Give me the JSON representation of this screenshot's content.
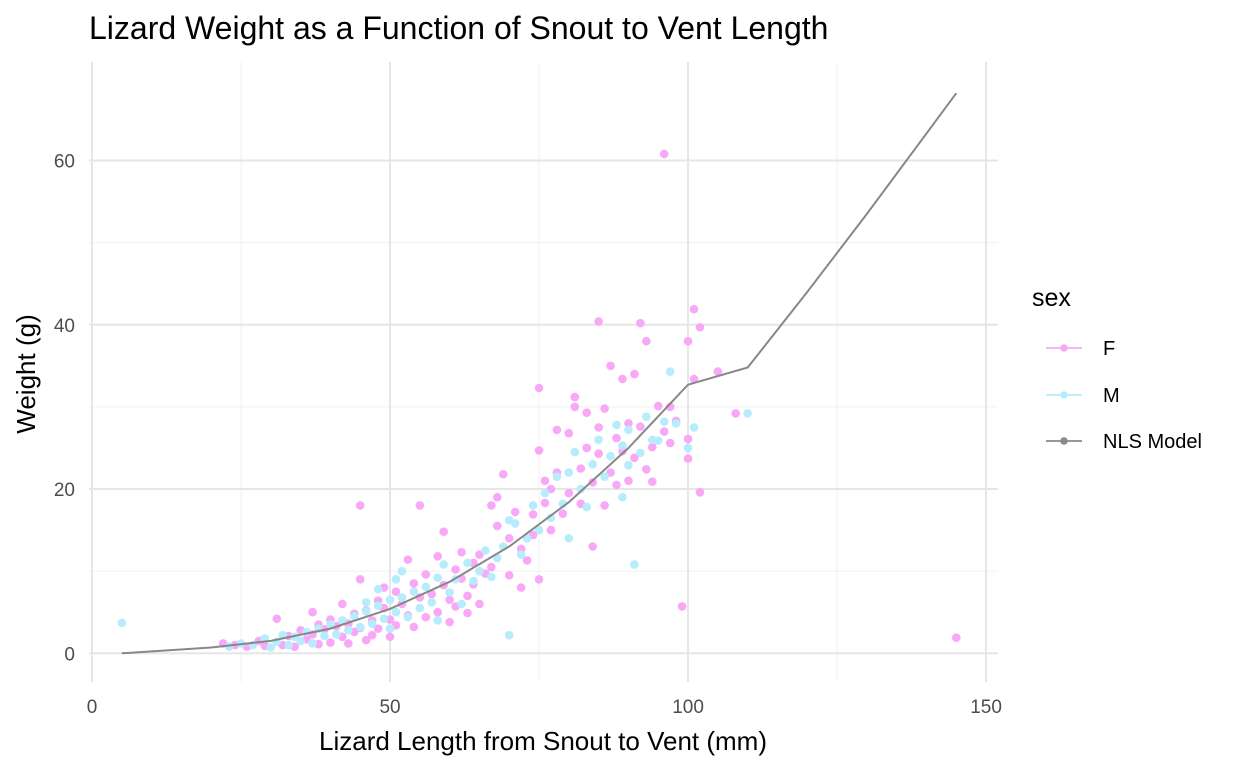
{
  "chart_data": {
    "type": "scatter",
    "title": "Lizard Weight as a Function of Snout to Vent Length",
    "xlabel": "Lizard Length from Snout to Vent (mm)",
    "ylabel": "Weight (g)",
    "xlim": [
      -0.5,
      152
    ],
    "ylim": [
      -3.5,
      72
    ],
    "x_ticks": [
      0,
      50,
      100,
      150
    ],
    "x_tick_labels": [
      "0",
      "50",
      "100",
      "150"
    ],
    "y_ticks": [
      0,
      20,
      40,
      60
    ],
    "y_tick_labels": [
      "0",
      "20",
      "40",
      "60"
    ],
    "x_minor_grid": [
      25,
      75,
      125
    ],
    "y_minor_grid": [
      10,
      30,
      50
    ],
    "grid": true,
    "legend": {
      "title": "sex",
      "position": "right",
      "entries": [
        {
          "label": "F",
          "color": "#f9a8f7"
        },
        {
          "label": "M",
          "color": "#b7ecfc"
        },
        {
          "label": "NLS Model",
          "color": "#888888"
        }
      ]
    },
    "series": [
      {
        "name": "F",
        "color": "#f9a8f7",
        "points": [
          [
            22,
            1.2
          ],
          [
            24,
            1.0
          ],
          [
            26,
            0.8
          ],
          [
            28,
            1.5
          ],
          [
            29,
            0.9
          ],
          [
            31,
            4.2
          ],
          [
            32,
            1.0
          ],
          [
            33,
            2.1
          ],
          [
            34,
            0.8
          ],
          [
            35,
            2.8
          ],
          [
            36,
            1.7
          ],
          [
            37,
            5.0
          ],
          [
            37,
            2.3
          ],
          [
            38,
            3.5
          ],
          [
            38,
            1.1
          ],
          [
            39,
            2.9
          ],
          [
            40,
            4.1
          ],
          [
            40,
            1.3
          ],
          [
            41,
            3.3
          ],
          [
            42,
            6.0
          ],
          [
            42,
            2.0
          ],
          [
            43,
            3.6
          ],
          [
            43,
            1.2
          ],
          [
            44,
            4.8
          ],
          [
            44,
            2.6
          ],
          [
            45,
            9.0
          ],
          [
            45,
            18.0
          ],
          [
            45,
            3.1
          ],
          [
            46,
            5.2
          ],
          [
            46,
            1.6
          ],
          [
            47,
            4.0
          ],
          [
            47,
            2.2
          ],
          [
            48,
            6.4
          ],
          [
            48,
            3.0
          ],
          [
            49,
            5.5
          ],
          [
            49,
            8.0
          ],
          [
            50,
            4.1
          ],
          [
            50,
            2.0
          ],
          [
            51,
            7.5
          ],
          [
            51,
            3.4
          ],
          [
            52,
            6.0
          ],
          [
            53,
            11.4
          ],
          [
            53,
            4.6
          ],
          [
            54,
            8.5
          ],
          [
            54,
            3.2
          ],
          [
            55,
            18.0
          ],
          [
            55,
            6.8
          ],
          [
            56,
            9.6
          ],
          [
            56,
            4.4
          ],
          [
            57,
            7.2
          ],
          [
            58,
            11.8
          ],
          [
            58,
            5.0
          ],
          [
            59,
            14.8
          ],
          [
            59,
            8.3
          ],
          [
            60,
            6.5
          ],
          [
            60,
            3.8
          ],
          [
            61,
            10.2
          ],
          [
            61,
            5.7
          ],
          [
            62,
            9.1
          ],
          [
            62,
            12.3
          ],
          [
            63,
            7.0
          ],
          [
            63,
            4.9
          ],
          [
            64,
            11.0
          ],
          [
            64,
            8.4
          ],
          [
            65,
            12.0
          ],
          [
            65,
            6.0
          ],
          [
            66,
            9.7
          ],
          [
            67,
            18.0
          ],
          [
            67,
            10.5
          ],
          [
            68,
            15.5
          ],
          [
            68,
            19.0
          ],
          [
            69,
            21.8
          ],
          [
            70,
            14.0
          ],
          [
            70,
            9.5
          ],
          [
            71,
            17.2
          ],
          [
            72,
            12.7
          ],
          [
            72,
            8.0
          ],
          [
            73,
            11.3
          ],
          [
            74,
            16.9
          ],
          [
            74,
            14.4
          ],
          [
            75,
            24.7
          ],
          [
            75,
            32.3
          ],
          [
            75,
            9.0
          ],
          [
            76,
            21.0
          ],
          [
            76,
            18.3
          ],
          [
            77,
            20.0
          ],
          [
            77,
            15.0
          ],
          [
            78,
            27.2
          ],
          [
            78,
            22.0
          ],
          [
            79,
            17.0
          ],
          [
            80,
            19.5
          ],
          [
            80,
            26.8
          ],
          [
            81,
            31.2
          ],
          [
            81,
            30.0
          ],
          [
            82,
            22.5
          ],
          [
            82,
            18.2
          ],
          [
            83,
            25.0
          ],
          [
            83,
            29.3
          ],
          [
            84,
            20.8
          ],
          [
            84,
            13.0
          ],
          [
            85,
            24.3
          ],
          [
            85,
            40.4
          ],
          [
            85,
            27.5
          ],
          [
            86,
            29.8
          ],
          [
            86,
            18.0
          ],
          [
            87,
            35.0
          ],
          [
            87,
            22.0
          ],
          [
            88,
            26.2
          ],
          [
            88,
            20.5
          ],
          [
            89,
            33.4
          ],
          [
            89,
            24.6
          ],
          [
            90,
            21.0
          ],
          [
            90,
            28.0
          ],
          [
            91,
            34.0
          ],
          [
            91,
            23.8
          ],
          [
            92,
            40.2
          ],
          [
            92,
            27.6
          ],
          [
            93,
            38.0
          ],
          [
            93,
            22.4
          ],
          [
            94,
            25.1
          ],
          [
            94,
            20.9
          ],
          [
            95,
            30.1
          ],
          [
            96,
            27.0
          ],
          [
            96,
            60.8
          ],
          [
            97,
            30.0
          ],
          [
            97,
            25.6
          ],
          [
            98,
            28.3
          ],
          [
            99,
            5.7
          ],
          [
            100,
            38.0
          ],
          [
            100,
            26.1
          ],
          [
            100,
            23.7
          ],
          [
            101,
            41.9
          ],
          [
            101,
            33.4
          ],
          [
            102,
            19.6
          ],
          [
            102,
            39.7
          ],
          [
            105,
            34.3
          ],
          [
            108,
            29.2
          ],
          [
            145,
            1.9
          ]
        ]
      },
      {
        "name": "M",
        "color": "#b7ecfc",
        "points": [
          [
            5,
            3.7
          ],
          [
            23,
            0.8
          ],
          [
            25,
            1.2
          ],
          [
            27,
            1.0
          ],
          [
            29,
            1.8
          ],
          [
            30,
            0.7
          ],
          [
            31,
            1.4
          ],
          [
            32,
            2.2
          ],
          [
            33,
            1.0
          ],
          [
            34,
            2.0
          ],
          [
            35,
            1.5
          ],
          [
            36,
            2.6
          ],
          [
            37,
            1.2
          ],
          [
            38,
            3.0
          ],
          [
            39,
            2.1
          ],
          [
            40,
            3.5
          ],
          [
            41,
            2.3
          ],
          [
            42,
            4.0
          ],
          [
            43,
            2.8
          ],
          [
            44,
            4.5
          ],
          [
            45,
            3.2
          ],
          [
            46,
            5.1
          ],
          [
            46,
            6.2
          ],
          [
            47,
            3.6
          ],
          [
            48,
            5.8
          ],
          [
            48,
            7.8
          ],
          [
            49,
            4.2
          ],
          [
            50,
            6.5
          ],
          [
            50,
            3.0
          ],
          [
            51,
            9.0
          ],
          [
            51,
            5.0
          ],
          [
            52,
            10.0
          ],
          [
            52,
            6.8
          ],
          [
            53,
            4.4
          ],
          [
            54,
            7.5
          ],
          [
            55,
            5.5
          ],
          [
            56,
            8.1
          ],
          [
            57,
            6.2
          ],
          [
            58,
            9.2
          ],
          [
            58,
            4.0
          ],
          [
            59,
            10.8
          ],
          [
            60,
            7.4
          ],
          [
            61,
            9.0
          ],
          [
            62,
            6.0
          ],
          [
            63,
            11.0
          ],
          [
            64,
            8.8
          ],
          [
            65,
            10.0
          ],
          [
            66,
            12.5
          ],
          [
            67,
            9.3
          ],
          [
            68,
            11.6
          ],
          [
            69,
            13.0
          ],
          [
            70,
            2.2
          ],
          [
            70,
            16.2
          ],
          [
            71,
            15.8
          ],
          [
            72,
            12.0
          ],
          [
            73,
            14.0
          ],
          [
            74,
            18.0
          ],
          [
            75,
            15.0
          ],
          [
            76,
            19.5
          ],
          [
            77,
            16.5
          ],
          [
            78,
            21.5
          ],
          [
            79,
            18.2
          ],
          [
            80,
            14.0
          ],
          [
            80,
            22.0
          ],
          [
            81,
            24.5
          ],
          [
            82,
            20.0
          ],
          [
            83,
            17.8
          ],
          [
            84,
            23.0
          ],
          [
            85,
            26.0
          ],
          [
            86,
            21.5
          ],
          [
            87,
            24.0
          ],
          [
            88,
            27.8
          ],
          [
            89,
            19.0
          ],
          [
            89,
            25.3
          ],
          [
            90,
            27.2
          ],
          [
            90,
            22.9
          ],
          [
            91,
            10.8
          ],
          [
            92,
            24.4
          ],
          [
            93,
            28.8
          ],
          [
            94,
            26.0
          ],
          [
            95,
            25.9
          ],
          [
            96,
            28.2
          ],
          [
            97,
            34.3
          ],
          [
            98,
            28.0
          ],
          [
            100,
            25.0
          ],
          [
            101,
            27.5
          ],
          [
            110,
            29.2
          ]
        ]
      }
    ],
    "model": {
      "name": "NLS Model",
      "color": "#888888",
      "points": [
        [
          5,
          0.0
        ],
        [
          20,
          0.7
        ],
        [
          30,
          1.5
        ],
        [
          40,
          3.0
        ],
        [
          50,
          5.4
        ],
        [
          60,
          8.7
        ],
        [
          70,
          13.0
        ],
        [
          80,
          18.4
        ],
        [
          90,
          25.0
        ],
        [
          100,
          32.7
        ],
        [
          110,
          34.8
        ],
        [
          120,
          44.0
        ],
        [
          130,
          53.5
        ],
        [
          145,
          68.2
        ]
      ]
    }
  }
}
